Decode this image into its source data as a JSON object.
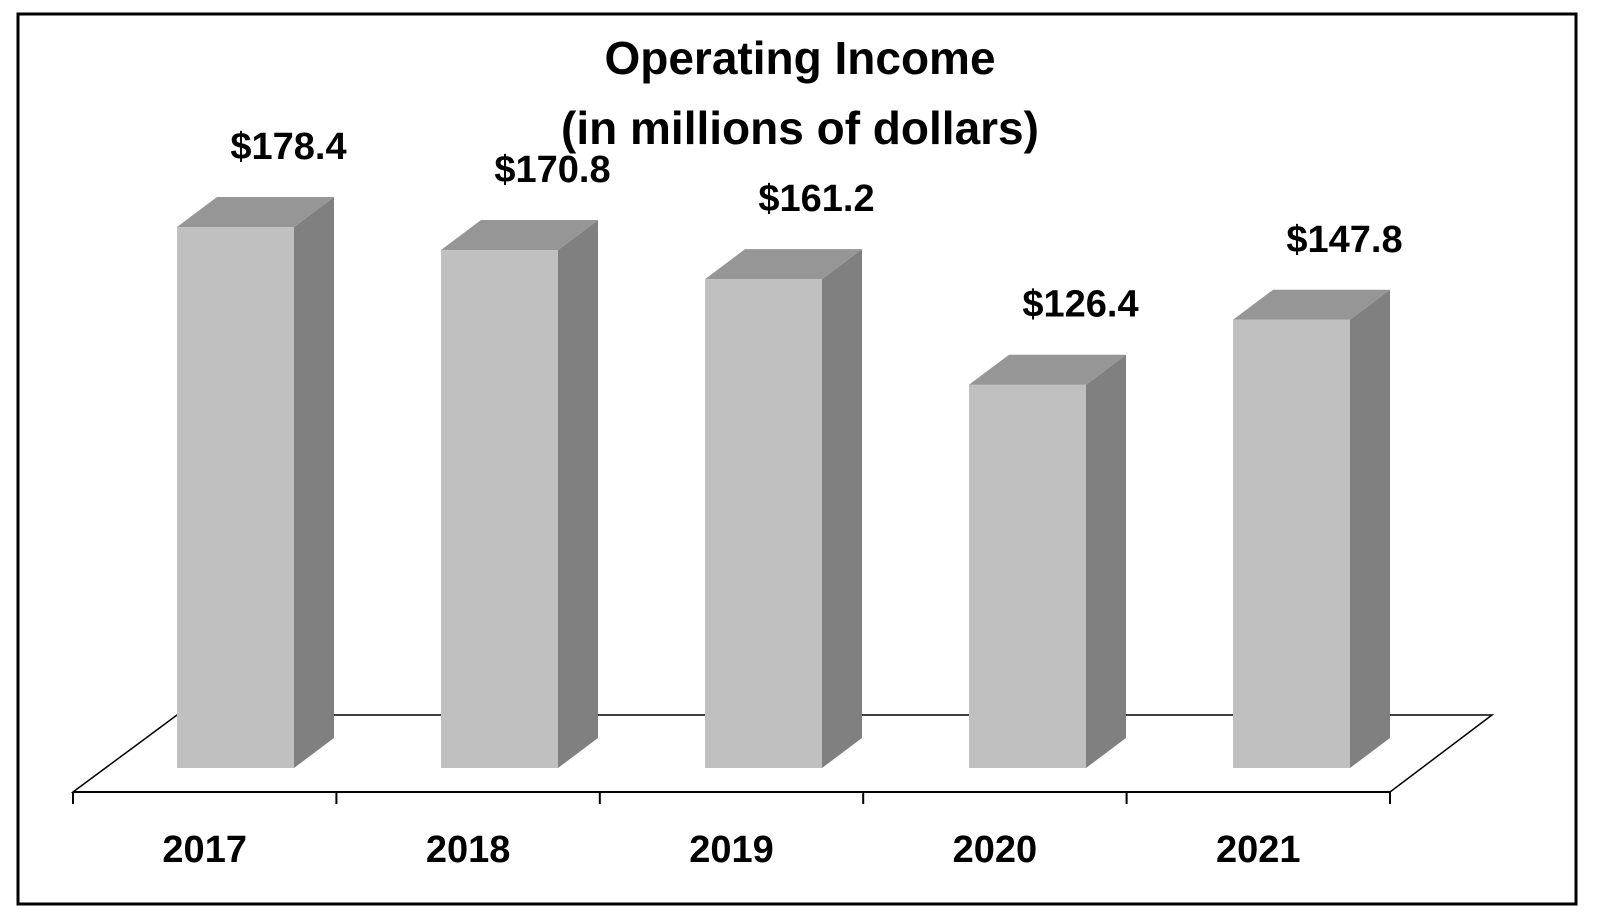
{
  "chart_data": {
    "type": "bar",
    "title": "Operating Income",
    "subtitle": "(in millions of dollars)",
    "categories": [
      "2017",
      "2018",
      "2019",
      "2020",
      "2021"
    ],
    "values": [
      178.4,
      170.8,
      161.2,
      126.4,
      147.8
    ],
    "value_labels": [
      "$178.4",
      "$170.8",
      "$161.2",
      "$126.4",
      "$147.8"
    ],
    "xlabel": "",
    "ylabel": "",
    "ylim": [
      0,
      178.4
    ],
    "grid": false,
    "legend": "none",
    "style": "3d-column"
  },
  "colors": {
    "bar_front": "#c0c0c0",
    "bar_side": "#808080",
    "bar_top": "#969696",
    "border": "#000000",
    "background": "#ffffff"
  }
}
